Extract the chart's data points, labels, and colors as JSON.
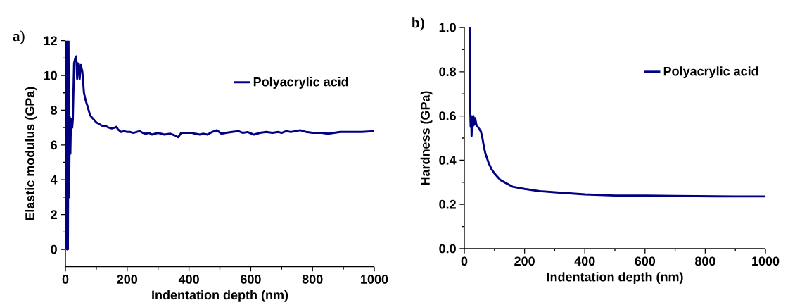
{
  "chart_data": [
    {
      "type": "line",
      "title": "a)",
      "xlabel": "Indentation depth (nm)",
      "ylabel": "Elastic modulus (GPa)",
      "legend": "top right",
      "xlim": [
        0,
        1000
      ],
      "ylim": [
        -1,
        12
      ],
      "xticks": [
        0,
        200,
        400,
        600,
        800,
        1000
      ],
      "yticks": [
        0,
        2,
        4,
        6,
        8,
        10,
        12
      ],
      "series": [
        {
          "name": "Polyacrylic acid",
          "color": "#000080",
          "x": [
            2,
            3,
            5,
            6,
            8,
            10,
            12,
            14,
            16,
            18,
            22,
            24,
            28,
            32,
            35,
            38,
            40,
            44,
            46,
            50,
            55,
            60,
            65,
            72,
            80,
            90,
            100,
            110,
            120,
            130,
            140,
            150,
            160,
            165,
            170,
            180,
            190,
            200,
            210,
            220,
            240,
            250,
            260,
            270,
            280,
            300,
            320,
            340,
            355,
            365,
            375,
            390,
            410,
            420,
            435,
            445,
            460,
            475,
            490,
            505,
            520,
            540,
            560,
            575,
            590,
            610,
            630,
            650,
            670,
            690,
            700,
            715,
            730,
            745,
            760,
            780,
            800,
            830,
            850,
            870,
            890,
            910,
            930,
            960,
            1000
          ],
          "values": [
            0,
            12,
            0,
            12,
            0,
            12,
            3,
            7.6,
            5.5,
            7.5,
            7.0,
            7.5,
            10.7,
            11.0,
            11.1,
            9.8,
            10.7,
            10.5,
            9.8,
            10.6,
            10.2,
            9.0,
            8.6,
            8.2,
            7.7,
            7.5,
            7.3,
            7.2,
            7.1,
            7.1,
            7.0,
            6.95,
            7.0,
            7.05,
            6.9,
            6.75,
            6.8,
            6.75,
            6.75,
            6.7,
            6.8,
            6.7,
            6.65,
            6.7,
            6.6,
            6.7,
            6.6,
            6.65,
            6.55,
            6.45,
            6.7,
            6.7,
            6.7,
            6.65,
            6.6,
            6.65,
            6.6,
            6.75,
            6.85,
            6.65,
            6.7,
            6.75,
            6.8,
            6.7,
            6.75,
            6.6,
            6.7,
            6.75,
            6.7,
            6.75,
            6.7,
            6.8,
            6.75,
            6.8,
            6.85,
            6.75,
            6.7,
            6.7,
            6.65,
            6.7,
            6.75,
            6.75,
            6.75,
            6.75,
            6.8
          ]
        }
      ]
    },
    {
      "type": "line",
      "title": "b)",
      "xlabel": "Indentation depth (nm)",
      "ylabel": "Hardness (GPa)",
      "legend": "top right",
      "xlim": [
        0,
        1000
      ],
      "ylim": [
        0,
        1
      ],
      "xticks": [
        0,
        200,
        400,
        600,
        800,
        1000
      ],
      "yticks": [
        {
          "value": 0,
          "label": "0.0"
        },
        {
          "value": 0.2,
          "label": "0.2"
        },
        {
          "value": 0.4,
          "label": "0.4"
        },
        {
          "value": 0.6,
          "label": "0.6"
        },
        {
          "value": 0.8,
          "label": "0.8"
        },
        {
          "value": 1,
          "label": "1.0"
        }
      ],
      "series": [
        {
          "name": "Polyacrylic acid",
          "color": "#000080",
          "x": [
            18,
            19,
            20,
            21,
            23,
            24,
            26,
            28,
            30,
            33,
            36,
            40,
            45,
            50,
            55,
            60,
            65,
            70,
            80,
            90,
            100,
            120,
            140,
            160,
            200,
            250,
            300,
            350,
            400,
            500,
            600,
            700,
            800,
            900,
            1000
          ],
          "values": [
            1.0,
            0.72,
            0.6,
            0.55,
            0.6,
            0.51,
            0.58,
            0.55,
            0.6,
            0.56,
            0.59,
            0.56,
            0.55,
            0.54,
            0.53,
            0.5,
            0.46,
            0.43,
            0.39,
            0.36,
            0.34,
            0.31,
            0.295,
            0.28,
            0.27,
            0.26,
            0.255,
            0.25,
            0.245,
            0.24,
            0.24,
            0.238,
            0.237,
            0.236,
            0.236
          ]
        }
      ]
    }
  ]
}
